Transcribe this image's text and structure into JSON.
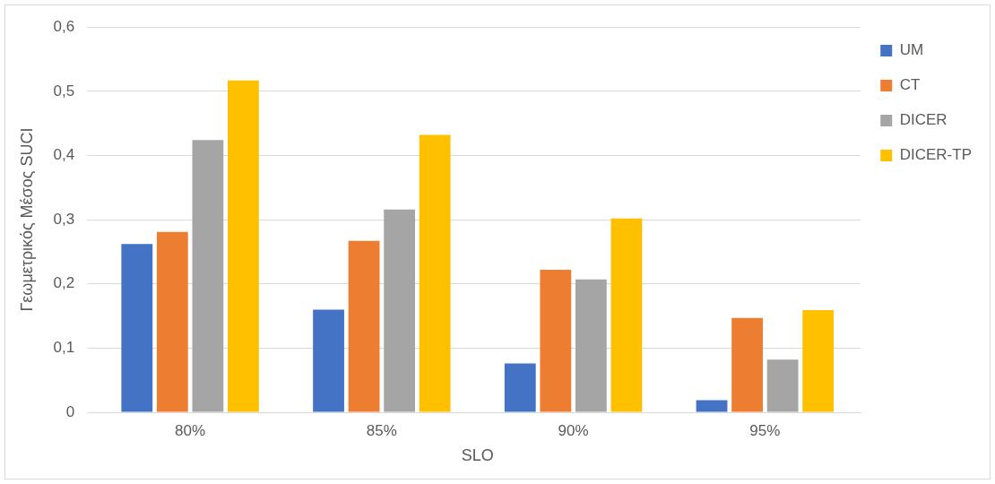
{
  "chart_data": {
    "type": "bar",
    "xlabel": "SLO",
    "ylabel": "Γεωμετρικός Μέσος SUCI",
    "categories": [
      "80%",
      "85%",
      "90%",
      "95%"
    ],
    "series": [
      {
        "name": "UM",
        "color": "#4472c4",
        "values": [
          0.262,
          0.16,
          0.076,
          0.019
        ]
      },
      {
        "name": "CT",
        "color": "#ed7d31",
        "values": [
          0.281,
          0.267,
          0.222,
          0.147
        ]
      },
      {
        "name": "DICER",
        "color": "#a5a5a5",
        "values": [
          0.424,
          0.316,
          0.207,
          0.082
        ]
      },
      {
        "name": "DICER-TP",
        "color": "#ffc000",
        "values": [
          0.517,
          0.432,
          0.302,
          0.159
        ]
      }
    ],
    "ylim": [
      0,
      0.6
    ],
    "yticks": [
      0,
      {
        "value": 0.1,
        "label": "0,1"
      },
      {
        "value": 0.2,
        "label": "0,2"
      },
      {
        "value": 0.3,
        "label": "0,3"
      },
      {
        "value": 0.4,
        "label": "0,4"
      },
      {
        "value": 0.5,
        "label": "0,5"
      },
      {
        "value": 0.6,
        "label": "0,6"
      }
    ],
    "grid": "y",
    "legend": "right"
  }
}
